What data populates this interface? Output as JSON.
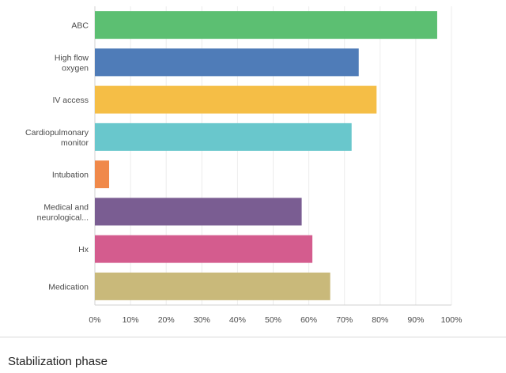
{
  "chart_data": {
    "type": "bar",
    "orientation": "horizontal",
    "categories": [
      [
        "ABC"
      ],
      [
        "High flow",
        "oxygen"
      ],
      [
        "IV access"
      ],
      [
        "Cardiopulmonary",
        "monitor"
      ],
      [
        "Intubation"
      ],
      [
        "Medical and",
        "neurological..."
      ],
      [
        "Hx"
      ],
      [
        "Medication"
      ]
    ],
    "values": [
      96,
      74,
      79,
      72,
      4,
      58,
      61,
      66
    ],
    "colors": [
      "#5cbf72",
      "#4f7cb8",
      "#f5be46",
      "#69c7cc",
      "#f0894a",
      "#7a5d92",
      "#d45c8e",
      "#c9b97a"
    ],
    "x_ticks": [
      "0%",
      "10%",
      "20%",
      "30%",
      "40%",
      "50%",
      "60%",
      "70%",
      "80%",
      "90%",
      "100%"
    ],
    "xlim": [
      0,
      100
    ],
    "grid": true,
    "title": "",
    "xlabel": "",
    "ylabel": ""
  },
  "caption": "Stabilization phase"
}
